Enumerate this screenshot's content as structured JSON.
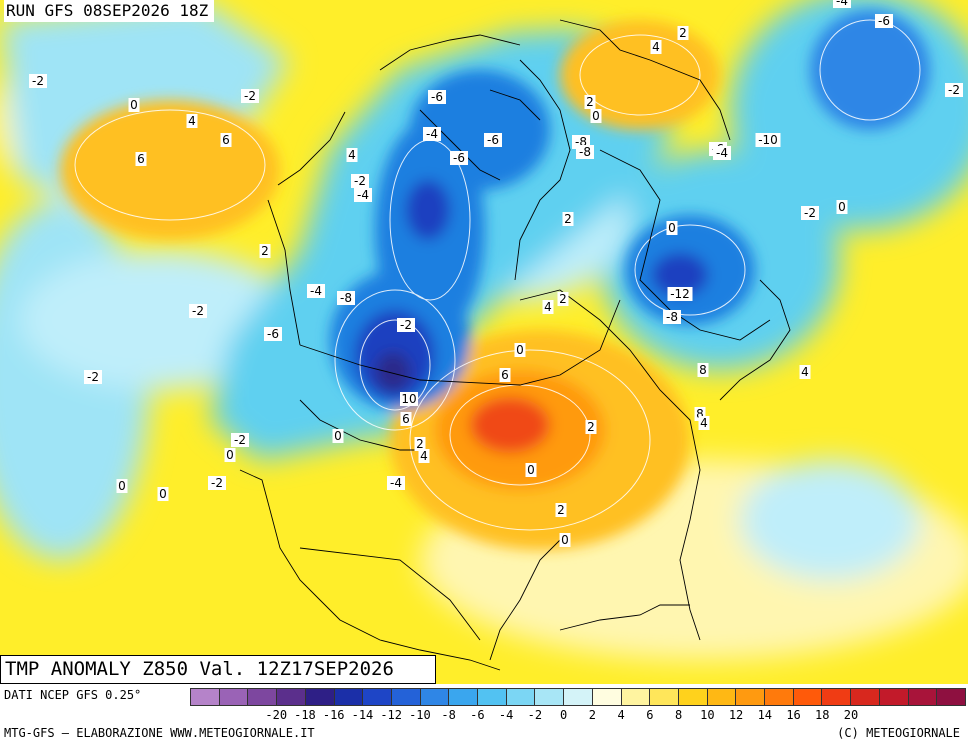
{
  "header": {
    "run_label": "RUN GFS 08SEP2026 18Z"
  },
  "title": "TMP ANOMALY Z850 Val. 12Z17SEP2026",
  "footer": {
    "data_source": "DATI NCEP GFS 0.25°",
    "credit_left": "MTG-GFS – ELABORAZIONE WWW.METEOGIORNALE.IT",
    "credit_right": "(C) METEOGIORNALE"
  },
  "legend": {
    "colors": [
      "#b583c9",
      "#9a63b6",
      "#7d479f",
      "#5b2f8c",
      "#2e1f86",
      "#1b2fa8",
      "#1e45c6",
      "#2462d8",
      "#2f86e6",
      "#3aa6ee",
      "#52c2f2",
      "#7bd6f4",
      "#a8e6f6",
      "#d4f3f8",
      "#fffde0",
      "#fff4a0",
      "#ffe65a",
      "#ffd21c",
      "#ffb814",
      "#ff9a10",
      "#ff7a0c",
      "#ff5a0a",
      "#f03c14",
      "#d8281e",
      "#c21a2a",
      "#a8143a",
      "#8e1040"
    ],
    "ticks": [
      "-20",
      "-18",
      "-16",
      "-14",
      "-12",
      "-10",
      "-8",
      "-6",
      "-4",
      "-2",
      "0",
      "2",
      "4",
      "6",
      "8",
      "10",
      "12",
      "14",
      "16",
      "18",
      "20"
    ]
  },
  "map": {
    "region": "North America",
    "colors": {
      "background": "#ffee2a",
      "cyan_light": "#bfeefa",
      "cyan": "#5fd0f0",
      "blue": "#1e7fe0",
      "blue_dark": "#1a40c0",
      "navy": "#2a2a8a",
      "yellow_pale": "#fff6b0",
      "orange": "#ffb020",
      "orange_dark": "#ff7a10",
      "red": "#f04a14",
      "coast": "#000000",
      "contour": "#ffffff"
    },
    "contour_labels": [
      "-4",
      "-6",
      "2",
      "4",
      "-2",
      "0",
      "-2",
      "-2",
      "4",
      "-6",
      "6",
      "6",
      "-4",
      "-6",
      "4",
      "2",
      "0",
      "-6",
      "-8",
      "-6",
      "-8",
      "-10",
      "-4",
      "-2",
      "-4",
      "-2",
      "0",
      "2",
      "0",
      "2",
      "-4",
      "-12",
      "-8",
      "-2",
      "4",
      "2",
      "-8",
      "-6",
      "-2",
      "0",
      "-2",
      "6",
      "8",
      "4",
      "10",
      "8",
      "6",
      "4",
      "-2",
      "2",
      "0",
      "2",
      "0",
      "4",
      "0",
      "0",
      "0",
      "-2",
      "-4",
      "2",
      "0"
    ]
  }
}
